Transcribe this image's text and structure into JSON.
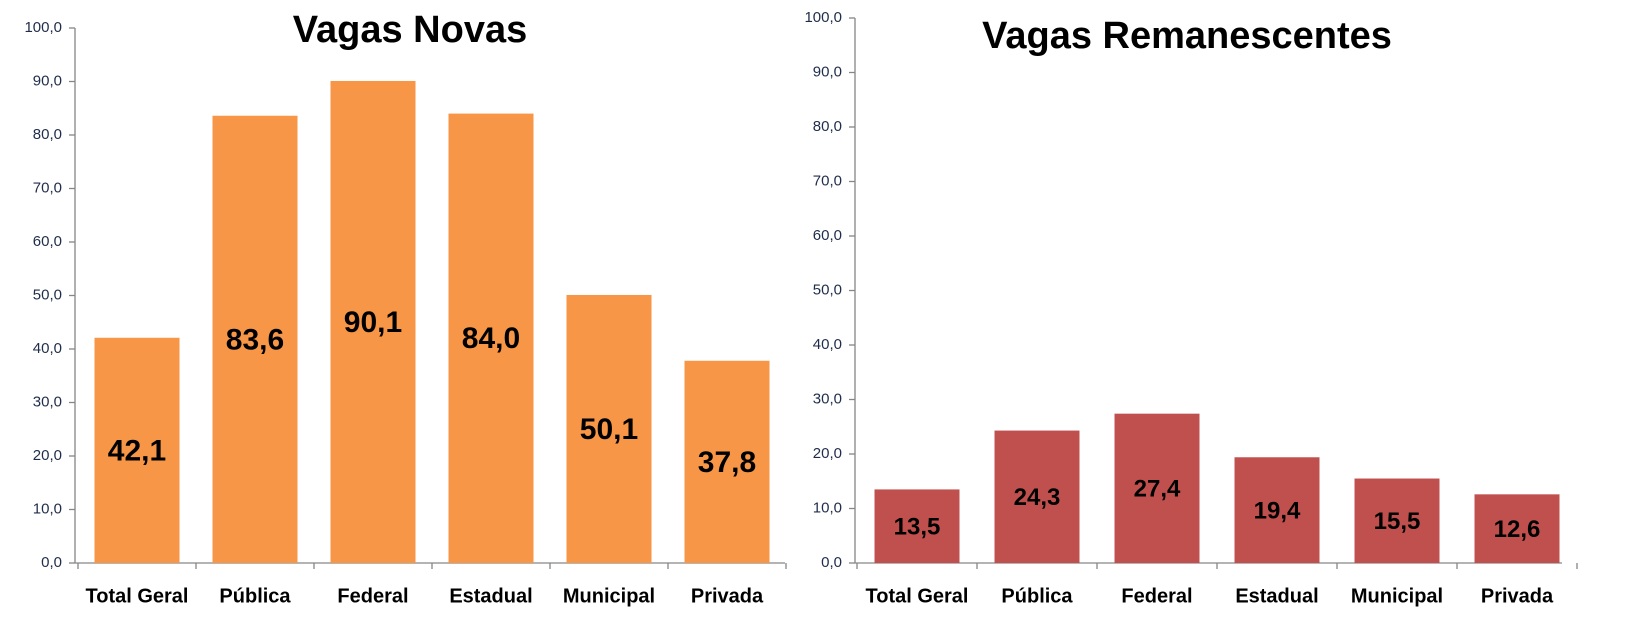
{
  "chart_data": [
    {
      "type": "bar",
      "title": "Vagas Novas",
      "categories": [
        "Total Geral",
        "Pública",
        "Federal",
        "Estadual",
        "Municipal",
        "Privada"
      ],
      "values": [
        42.1,
        83.6,
        90.1,
        84.0,
        50.1,
        37.8
      ],
      "value_labels": [
        "42,1",
        "83,6",
        "90,1",
        "84,0",
        "50,1",
        "37,8"
      ],
      "color": "#f79646",
      "ylim": [
        0,
        100
      ],
      "yticks": [
        {
          "value": 0,
          "label": "0,0"
        },
        {
          "value": 10,
          "label": "10,0"
        },
        {
          "value": 20,
          "label": "20,0"
        },
        {
          "value": 30,
          "label": "30,0"
        },
        {
          "value": 40,
          "label": "40,0"
        },
        {
          "value": 50,
          "label": "50,0"
        },
        {
          "value": 60,
          "label": "60,0"
        },
        {
          "value": 70,
          "label": "70,0"
        },
        {
          "value": 80,
          "label": "80,0"
        },
        {
          "value": 90,
          "label": "90,0"
        },
        {
          "value": 100,
          "label": "100,0"
        }
      ],
      "grid": false
    },
    {
      "type": "bar",
      "title": "Vagas Remanescentes",
      "categories": [
        "Total Geral",
        "Pública",
        "Federal",
        "Estadual",
        "Municipal",
        "Privada"
      ],
      "values": [
        13.5,
        24.3,
        27.4,
        19.4,
        15.5,
        12.6
      ],
      "value_labels": [
        "13,5",
        "24,3",
        "27,4",
        "19,4",
        "15,5",
        "12,6"
      ],
      "color": "#c0504d",
      "ylim": [
        0,
        100
      ],
      "yticks": [
        {
          "value": 0,
          "label": "0,0"
        },
        {
          "value": 10,
          "label": "10,0"
        },
        {
          "value": 20,
          "label": "20,0"
        },
        {
          "value": 30,
          "label": "30,0"
        },
        {
          "value": 40,
          "label": "40,0"
        },
        {
          "value": 50,
          "label": "50,0"
        },
        {
          "value": 60,
          "label": "60,0"
        },
        {
          "value": 70,
          "label": "70,0"
        },
        {
          "value": 80,
          "label": "80,0"
        },
        {
          "value": 90,
          "label": "90,0"
        },
        {
          "value": 100,
          "label": "100,0"
        }
      ],
      "grid": false
    }
  ]
}
